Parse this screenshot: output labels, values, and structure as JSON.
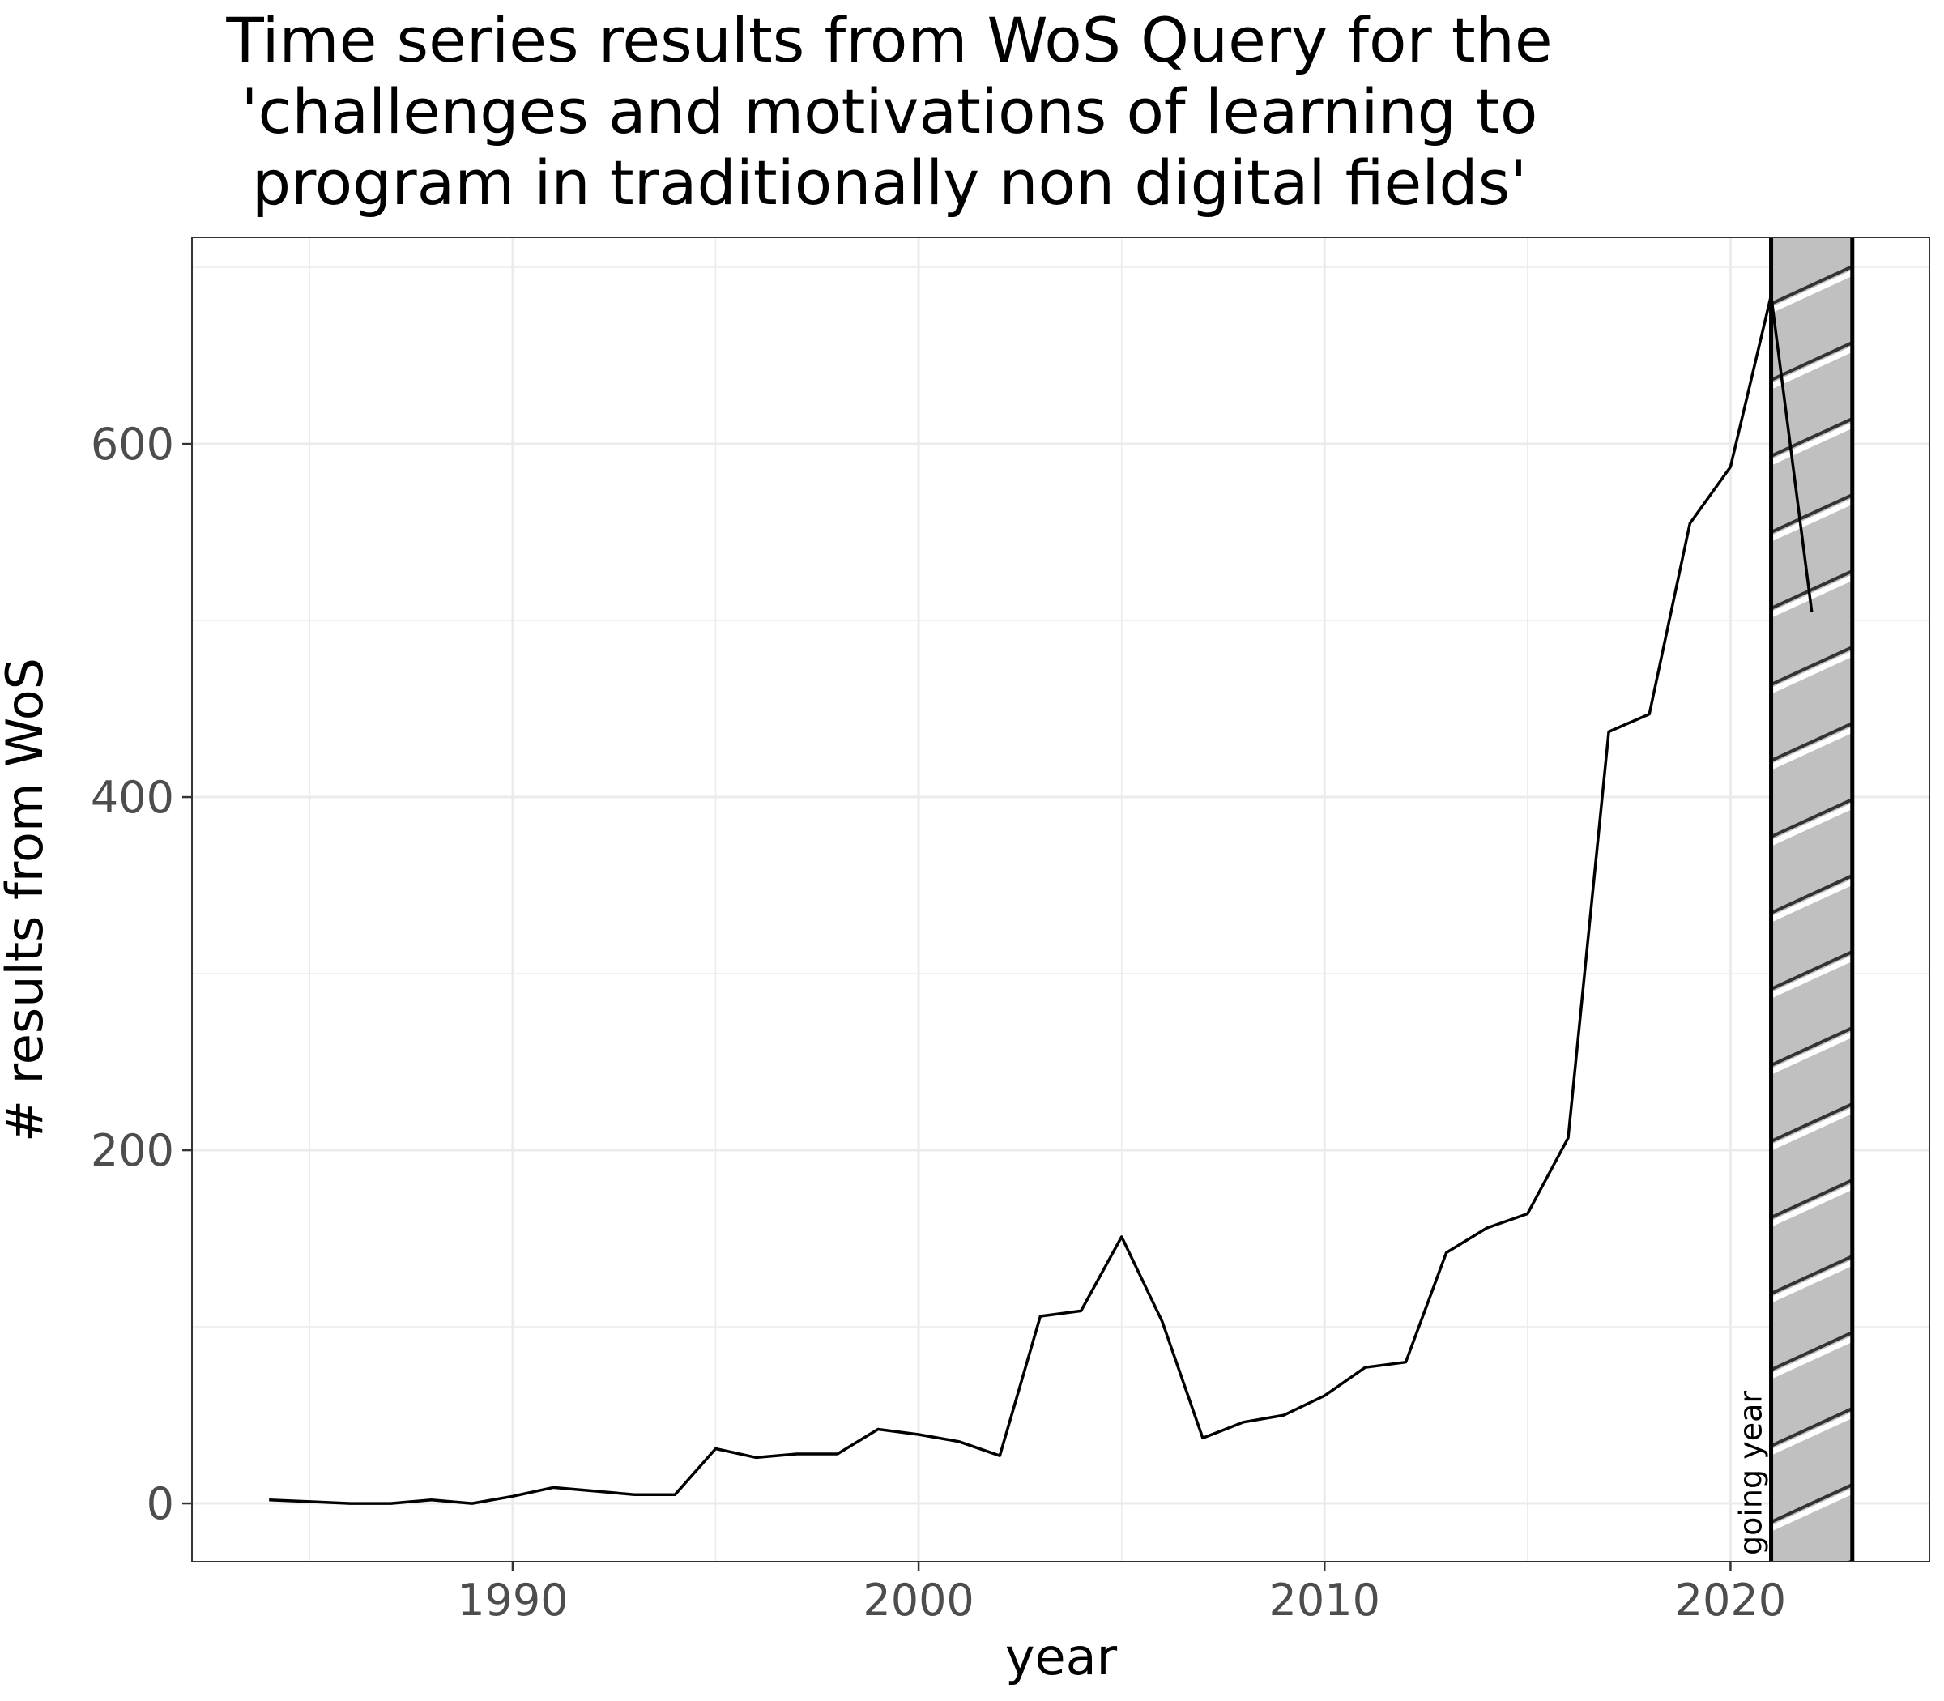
{
  "chart_data": {
    "type": "line",
    "title_lines": [
      "Time series results from WoS Query for the",
      "'challenges and motivations of learning to",
      "program in traditionally non digital fields'"
    ],
    "xlabel": "year",
    "ylabel": "# results from WoS",
    "xlim": [
      1982.1,
      2024.9
    ],
    "ylim": [
      -33,
      717
    ],
    "x_ticks": [
      1990,
      2000,
      2010,
      2020
    ],
    "x_tick_labels": [
      "1990",
      "2000",
      "2010",
      "2020"
    ],
    "y_ticks": [
      0,
      200,
      400,
      600
    ],
    "y_tick_labels": [
      "0",
      "200",
      "400",
      "600"
    ],
    "grid": true,
    "series": [
      {
        "x": [
          1984,
          1985,
          1986,
          1987,
          1988,
          1989,
          1990,
          1991,
          1992,
          1993,
          1994,
          1995,
          1996,
          1997,
          1998,
          1999,
          2000,
          2001,
          2002,
          2003,
          2004,
          2005,
          2006,
          2007,
          2008,
          2009,
          2010,
          2011,
          2012,
          2013,
          2014,
          2015,
          2016,
          2017,
          2018,
          2019,
          2020,
          2021,
          2022
        ],
        "values": [
          2,
          1,
          0,
          0,
          2,
          0,
          4,
          9,
          7,
          5,
          5,
          31,
          26,
          28,
          28,
          42,
          39,
          35,
          27,
          106,
          109,
          151,
          103,
          37,
          46,
          50,
          61,
          77,
          80,
          142,
          156,
          164,
          207,
          437,
          447,
          555,
          587,
          684,
          505
        ],
        "color": "#000000"
      }
    ],
    "shaded_region": {
      "x_start": 2021,
      "x_end": 2023,
      "fill": "#c0c0c0",
      "pattern": "diagonal-stripes",
      "label": "going year"
    }
  }
}
